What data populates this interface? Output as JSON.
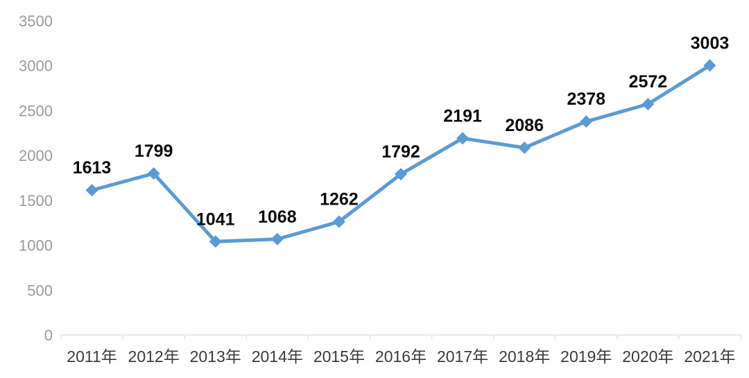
{
  "chart_data": {
    "type": "line",
    "title": "",
    "xlabel": "",
    "ylabel": "",
    "categories": [
      "2011年",
      "2012年",
      "2013年",
      "2014年",
      "2015年",
      "2016年",
      "2017年",
      "2018年",
      "2019年",
      "2020年",
      "2021年"
    ],
    "values": [
      1613,
      1799,
      1041,
      1068,
      1262,
      1792,
      2191,
      2086,
      2378,
      2572,
      3003
    ],
    "data_labels": [
      "1613",
      "1799",
      "1041",
      "1068",
      "1262",
      "1792",
      "2191",
      "2086",
      "2378",
      "2572",
      "3003"
    ],
    "ylim": [
      0,
      3500
    ],
    "yticks": [
      0,
      500,
      1000,
      1500,
      2000,
      2500,
      3000,
      3500
    ],
    "ytick_labels": [
      "0",
      "500",
      "1000",
      "1500",
      "2000",
      "2500",
      "3000",
      "3500"
    ],
    "grid": false,
    "legend": false,
    "marker_shape": "diamond",
    "colors": {
      "line": "#5B9BD5",
      "marker": "#5B9BD5",
      "data_label": "#0a0a0a",
      "y_tick_label": "#9a9a9a",
      "x_tick_label": "#3a3a3a",
      "axis_line": "#dde3ea",
      "background": "#ffffff"
    }
  }
}
